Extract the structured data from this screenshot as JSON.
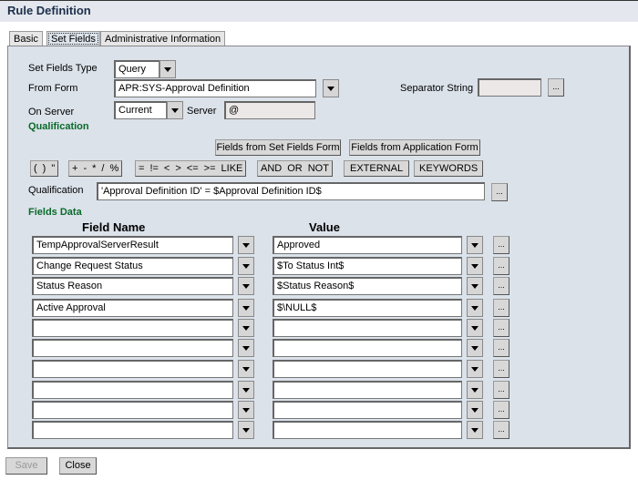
{
  "title": "Rule Definition",
  "tabs": [
    "Basic",
    "Set Fields",
    "Administrative Information"
  ],
  "form": {
    "set_fields_type_label": "Set Fields Type",
    "set_fields_type": "Query",
    "from_form_label": "From Form",
    "from_form": "APR:SYS-Approval Definition",
    "separator_label": "Separator String",
    "separator": "",
    "on_server_label": "On Server",
    "on_server": "Current",
    "server_label": "Server",
    "server": "@",
    "qualification_heading": "Qualification",
    "fields_from_set_fields_form": "Fields from Set Fields Form",
    "fields_from_application_form": "Fields from Application Form",
    "op_groups": [
      [
        "(",
        ")",
        "\""
      ],
      [
        "+",
        "-",
        "*",
        "/",
        "%"
      ],
      [
        "=",
        "!=",
        "<",
        ">",
        "<=",
        ">=",
        "LIKE"
      ],
      [
        "AND",
        "OR",
        "NOT"
      ],
      [
        "EXTERNAL"
      ],
      [
        "KEYWORDS"
      ]
    ],
    "qualification_label": "Qualification",
    "qualification": "'Approval Definition ID' =  $Approval Definition ID$",
    "fields_data_heading": "Fields Data",
    "col_field_name": "Field Name",
    "col_value": "Value",
    "rows": [
      {
        "field": "TempApprovalServerResult",
        "value": "Approved"
      },
      {
        "field": "Change Request Status",
        "value": "$To Status Int$"
      },
      {
        "field": "Status Reason",
        "value": "$Status Reason$"
      },
      {
        "field": "Active Approval",
        "value": "$\\NULL$"
      },
      {
        "field": "",
        "value": ""
      },
      {
        "field": "",
        "value": ""
      },
      {
        "field": "",
        "value": ""
      },
      {
        "field": "",
        "value": ""
      },
      {
        "field": "",
        "value": ""
      },
      {
        "field": "",
        "value": ""
      }
    ],
    "ellipsis": "..."
  },
  "footer": {
    "save": "Save",
    "close": "Close"
  }
}
